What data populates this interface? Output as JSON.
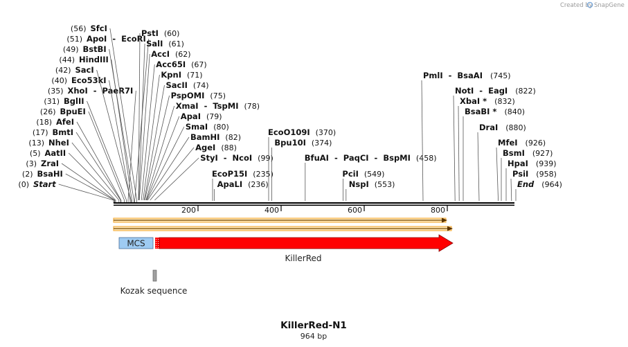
{
  "credit": {
    "prefix": "Created by",
    "brand": "SnapGene"
  },
  "sequence": {
    "name": "KillerRed-N1",
    "length_label": "964 bp",
    "length": 964
  },
  "ruler": {
    "ticks": [
      {
        "pos": 200,
        "label": "200"
      },
      {
        "pos": 400,
        "label": "400"
      },
      {
        "pos": 600,
        "label": "600"
      },
      {
        "pos": 800,
        "label": "800"
      }
    ]
  },
  "sites_left": [
    {
      "name": "Start",
      "pos": 0,
      "pos_label": "(0)",
      "italic": true
    },
    {
      "name": "BsaHI",
      "pos": 2,
      "pos_label": "(2)"
    },
    {
      "name": "ZraI",
      "pos": 3,
      "pos_label": "(3)"
    },
    {
      "name": "AatII",
      "pos": 5,
      "pos_label": "(5)"
    },
    {
      "name": "NheI",
      "pos": 13,
      "pos_label": "(13)"
    },
    {
      "name": "BmtI",
      "pos": 17,
      "pos_label": "(17)"
    },
    {
      "name": "AfeI",
      "pos": 18,
      "pos_label": "(18)"
    },
    {
      "name": "BpuEI",
      "pos": 26,
      "pos_label": "(26)"
    },
    {
      "name": "BglII",
      "pos": 31,
      "pos_label": "(31)"
    },
    {
      "name": "XhoI  -  PaeR7I",
      "pos": 35,
      "pos_label": "(35)"
    },
    {
      "name": "Eco53kI",
      "pos": 40,
      "pos_label": "(40)"
    },
    {
      "name": "SacI",
      "pos": 42,
      "pos_label": "(42)"
    },
    {
      "name": "HindIII",
      "pos": 44,
      "pos_label": "(44)"
    },
    {
      "name": "BstBI",
      "pos": 49,
      "pos_label": "(49)"
    },
    {
      "name": "ApoI  -  EcoRI",
      "pos": 51,
      "pos_label": "(51)"
    },
    {
      "name": "SfcI",
      "pos": 56,
      "pos_label": "(56)"
    }
  ],
  "sites_right": [
    {
      "name": "PstI",
      "pos": 60,
      "pos_label": "(60)"
    },
    {
      "name": "SalI",
      "pos": 61,
      "pos_label": "(61)"
    },
    {
      "name": "AccI",
      "pos": 62,
      "pos_label": "(62)"
    },
    {
      "name": "Acc65I",
      "pos": 67,
      "pos_label": "(67)"
    },
    {
      "name": "KpnI",
      "pos": 71,
      "pos_label": "(71)"
    },
    {
      "name": "SacII",
      "pos": 74,
      "pos_label": "(74)"
    },
    {
      "name": "PspOMI",
      "pos": 75,
      "pos_label": "(75)"
    },
    {
      "name": "XmaI  -  TspMI",
      "pos": 78,
      "pos_label": "(78)"
    },
    {
      "name": "ApaI",
      "pos": 79,
      "pos_label": "(79)"
    },
    {
      "name": "SmaI",
      "pos": 80,
      "pos_label": "(80)"
    },
    {
      "name": "BamHI",
      "pos": 82,
      "pos_label": "(82)"
    },
    {
      "name": "AgeI",
      "pos": 88,
      "pos_label": "(88)"
    },
    {
      "name": "StyI  -  NcoI",
      "pos": 99,
      "pos_label": "(99)"
    }
  ],
  "sites_mid": [
    {
      "name": "EcoP15I",
      "pos": 235,
      "pos_label": "(235)"
    },
    {
      "name": "ApaLI",
      "pos": 236,
      "pos_label": "(236)"
    },
    {
      "name": "EcoO109I",
      "pos": 370,
      "pos_label": "(370)"
    },
    {
      "name": "Bpu10I",
      "pos": 374,
      "pos_label": "(374)"
    },
    {
      "name": "BfuAI  -  PaqCI  -  BspMI",
      "pos": 458,
      "pos_label": "(458)"
    },
    {
      "name": "PciI",
      "pos": 549,
      "pos_label": "(549)"
    },
    {
      "name": "NspI",
      "pos": 553,
      "pos_label": "(553)"
    }
  ],
  "sites_far": [
    {
      "name": "PmlI  -  BsaAI",
      "pos": 745,
      "pos_label": "(745)"
    },
    {
      "name": "NotI  -  EagI",
      "pos": 822,
      "pos_label": "(822)"
    },
    {
      "name": "XbaI *",
      "pos": 832,
      "pos_label": "(832)"
    },
    {
      "name": "BsaBI *",
      "pos": 840,
      "pos_label": "(840)"
    },
    {
      "name": "DraI",
      "pos": 880,
      "pos_label": "(880)"
    },
    {
      "name": "MfeI",
      "pos": 926,
      "pos_label": "(926)"
    },
    {
      "name": "BsmI",
      "pos": 927,
      "pos_label": "(927)"
    },
    {
      "name": "HpaI",
      "pos": 939,
      "pos_label": "(939)"
    },
    {
      "name": "PsiI",
      "pos": 958,
      "pos_label": "(958)"
    },
    {
      "name": "End",
      "pos": 964,
      "pos_label": "(964)",
      "italic": true
    }
  ],
  "features": {
    "mcs": {
      "label": "MCS",
      "start": 12,
      "end": 92,
      "color": "#9ecbf2"
    },
    "killerred": {
      "label": "KillerRed",
      "start": 100,
      "end": 820,
      "color": "#ff0000"
    },
    "kozak": {
      "label": "Kozak sequence",
      "start": 93,
      "end": 100,
      "color": "#a0a0a0"
    },
    "orf_color": "#f3a52a"
  }
}
